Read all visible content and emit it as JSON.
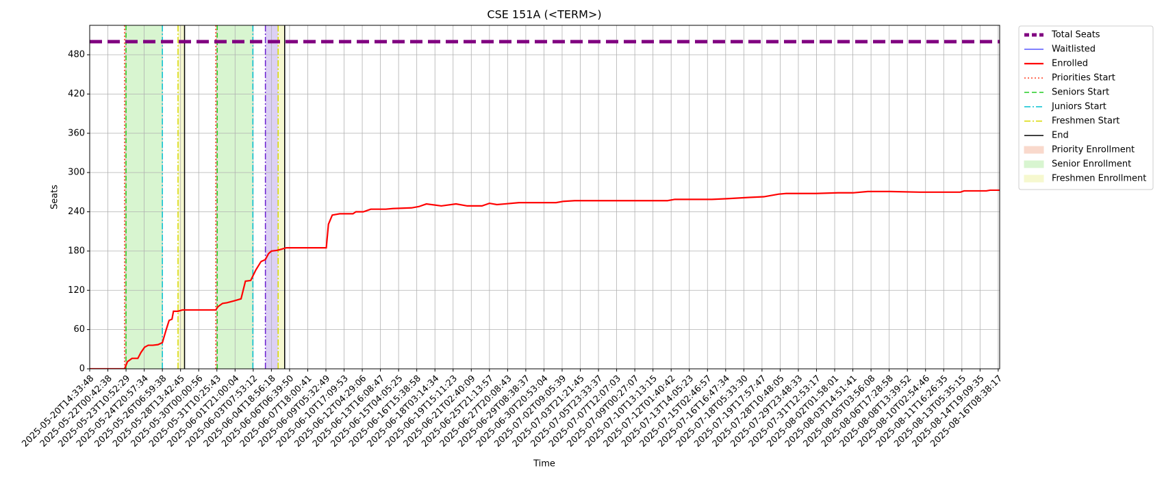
{
  "chart_data": {
    "type": "line",
    "title": "CSE 151A (<TERM>)",
    "x_label": "Time",
    "y_label": "Seats",
    "xlim": [
      0,
      50.08
    ],
    "ylim": [
      0,
      525
    ],
    "grid": true,
    "legend": "outside-upper-right",
    "xticks": [
      {
        "value": 0,
        "label": "2025-05-20T14:33:48"
      },
      {
        "value": 1,
        "label": "2025-05-22T00:42:38"
      },
      {
        "value": 2,
        "label": "2025-05-23T10:52:29"
      },
      {
        "value": 3,
        "label": "2025-05-24T20:57:34"
      },
      {
        "value": 4,
        "label": "2025-05-26T06:59:38"
      },
      {
        "value": 5,
        "label": "2025-05-28T13:42:45"
      },
      {
        "value": 6,
        "label": "2025-05-30T00:00:56"
      },
      {
        "value": 7,
        "label": "2025-05-31T10:25:43"
      },
      {
        "value": 8,
        "label": "2025-06-01T21:00:04"
      },
      {
        "value": 9,
        "label": "2025-06-03T07:53:12"
      },
      {
        "value": 10,
        "label": "2025-06-04T18:56:18"
      },
      {
        "value": 11,
        "label": "2025-06-06T06:39:50"
      },
      {
        "value": 12,
        "label": "2025-06-07T18:00:41"
      },
      {
        "value": 13,
        "label": "2025-06-09T05:32:49"
      },
      {
        "value": 14,
        "label": "2025-06-10T17:09:53"
      },
      {
        "value": 15,
        "label": "2025-06-12T04:29:06"
      },
      {
        "value": 16,
        "label": "2025-06-13T16:08:47"
      },
      {
        "value": 17,
        "label": "2025-06-15T04:05:25"
      },
      {
        "value": 18,
        "label": "2025-06-16T15:38:58"
      },
      {
        "value": 19,
        "label": "2025-06-18T03:14:34"
      },
      {
        "value": 20,
        "label": "2025-06-19T15:11:23"
      },
      {
        "value": 21,
        "label": "2025-06-21T02:40:09"
      },
      {
        "value": 22,
        "label": "2025-06-25T21:13:57"
      },
      {
        "value": 23,
        "label": "2025-06-27T20:08:43"
      },
      {
        "value": 24,
        "label": "2025-06-29T08:38:37"
      },
      {
        "value": 25,
        "label": "2025-06-30T20:53:04"
      },
      {
        "value": 26,
        "label": "2025-07-02T09:05:39"
      },
      {
        "value": 27,
        "label": "2025-07-03T21:21:45"
      },
      {
        "value": 28,
        "label": "2025-07-05T23:33:37"
      },
      {
        "value": 29,
        "label": "2025-07-07T12:07:03"
      },
      {
        "value": 30,
        "label": "2025-07-09T00:27:07"
      },
      {
        "value": 31,
        "label": "2025-07-10T13:13:15"
      },
      {
        "value": 32,
        "label": "2025-07-12T01:40:42"
      },
      {
        "value": 33,
        "label": "2025-07-13T14:05:23"
      },
      {
        "value": 34,
        "label": "2025-07-15T02:46:57"
      },
      {
        "value": 35,
        "label": "2025-07-16T16:47:34"
      },
      {
        "value": 36,
        "label": "2025-07-18T05:33:30"
      },
      {
        "value": 37,
        "label": "2025-07-19T17:57:47"
      },
      {
        "value": 38,
        "label": "2025-07-28T10:48:05"
      },
      {
        "value": 39,
        "label": "2025-07-29T23:48:33"
      },
      {
        "value": 40,
        "label": "2025-07-31T12:53:17"
      },
      {
        "value": 41,
        "label": "2025-08-02T01:58:01"
      },
      {
        "value": 42,
        "label": "2025-08-03T14:51:41"
      },
      {
        "value": 43,
        "label": "2025-08-05T03:56:08"
      },
      {
        "value": 44,
        "label": "2025-08-06T17:28:58"
      },
      {
        "value": 45,
        "label": "2025-08-08T13:39:52"
      },
      {
        "value": 46,
        "label": "2025-08-10T02:54:46"
      },
      {
        "value": 47,
        "label": "2025-08-11T16:26:35"
      },
      {
        "value": 48,
        "label": "2025-08-13T05:35:15"
      },
      {
        "value": 49,
        "label": "2025-08-14T19:09:35"
      },
      {
        "value": 50,
        "label": "2025-08-16T08:38:17"
      }
    ],
    "yticks": [
      0,
      60,
      120,
      180,
      240,
      300,
      360,
      420,
      480
    ],
    "series": [
      {
        "name": "Total Seats",
        "color": "#800080",
        "style": "dashed",
        "width": 5,
        "x": [
          0,
          50.08
        ],
        "values": [
          500,
          500
        ]
      },
      {
        "name": "Waitlisted",
        "color": "#0000ff",
        "style": "solid",
        "width": 1,
        "x": [
          0,
          50.08
        ],
        "values": [
          0,
          0
        ]
      },
      {
        "name": "Enrolled",
        "color": "#ff0000",
        "style": "solid",
        "width": 2.2,
        "x": [
          0,
          1.92,
          2.08,
          2.33,
          2.65,
          2.82,
          3.02,
          3.22,
          3.47,
          3.76,
          4.0,
          4.2,
          4.37,
          4.53,
          4.61,
          4.86,
          5.1,
          6.94,
          7.06,
          7.31,
          7.55,
          7.96,
          8.33,
          8.57,
          8.86,
          9.14,
          9.43,
          9.67,
          9.84,
          10.0,
          10.29,
          10.57,
          10.82,
          13.02,
          13.14,
          13.35,
          13.76,
          14.49,
          14.65,
          15.06,
          15.47,
          16.29,
          16.69,
          17.71,
          18.12,
          18.53,
          19.35,
          20.16,
          20.78,
          21.59,
          22.0,
          22.41,
          22.82,
          23.63,
          25.67,
          26.08,
          26.69,
          27.31,
          29.35,
          31.8,
          32.2,
          34.24,
          35.06,
          36.29,
          37.1,
          37.92,
          38.33,
          39.96,
          41.18,
          42.0,
          42.82,
          44.04,
          45.67,
          47.92,
          48.12,
          49.35,
          49.55,
          50.08
        ],
        "values": [
          0,
          0,
          11,
          16,
          16,
          25,
          33,
          36,
          36,
          37,
          40,
          59,
          74,
          76,
          88,
          88,
          90,
          90,
          95,
          100,
          101,
          104,
          107,
          134,
          135,
          151,
          164,
          167,
          176,
          180,
          181,
          183,
          185,
          185,
          221,
          235,
          237,
          237,
          240,
          240,
          244,
          244,
          245,
          246,
          248,
          252,
          249,
          252,
          249,
          249,
          253,
          251,
          252,
          254,
          254,
          256,
          257,
          257,
          257,
          257,
          259,
          259,
          260,
          262,
          263,
          267,
          268,
          268,
          269,
          269,
          271,
          271,
          270,
          270,
          272,
          272,
          273,
          273
        ]
      }
    ],
    "vlines": [
      {
        "name": "Priorities Start",
        "color": "#ff3b1f",
        "style": "dotted",
        "x": [
          1.92,
          6.94
        ]
      },
      {
        "name": "Seniors Start",
        "color": "#22cc22",
        "style": "dashed",
        "x": [
          2.0,
          7.02
        ]
      },
      {
        "name": "Juniors Start",
        "color": "#00bfd0",
        "style": "dashdot",
        "x": [
          4.0,
          8.98
        ]
      },
      {
        "name": "Freshmen Start",
        "color": "#d8d800",
        "style": "dashdot",
        "x": [
          4.86,
          10.37
        ]
      },
      {
        "name": "End",
        "color": "#000000",
        "style": "solid",
        "x": [
          5.22,
          10.73
        ]
      },
      {
        "color": "#6a1fd0",
        "style": "dashdot",
        "x": [
          9.67
        ]
      }
    ],
    "spans": [
      {
        "name": "Priority Enrollment",
        "color": "#f9d9cc",
        "ranges": [
          [
            1.92,
            2.0
          ],
          [
            6.94,
            7.02
          ]
        ]
      },
      {
        "name": "Senior Enrollment",
        "color": "#d8f5d0",
        "ranges": [
          [
            2.0,
            4.0
          ],
          [
            7.02,
            8.98
          ]
        ]
      },
      {
        "name": "Freshmen Enrollment",
        "color": "#f6f8cf",
        "ranges": [
          [
            4.86,
            5.22
          ],
          [
            10.37,
            10.73
          ]
        ]
      },
      {
        "color": "#dcd0f4",
        "ranges": [
          [
            9.67,
            10.37
          ]
        ]
      }
    ]
  }
}
